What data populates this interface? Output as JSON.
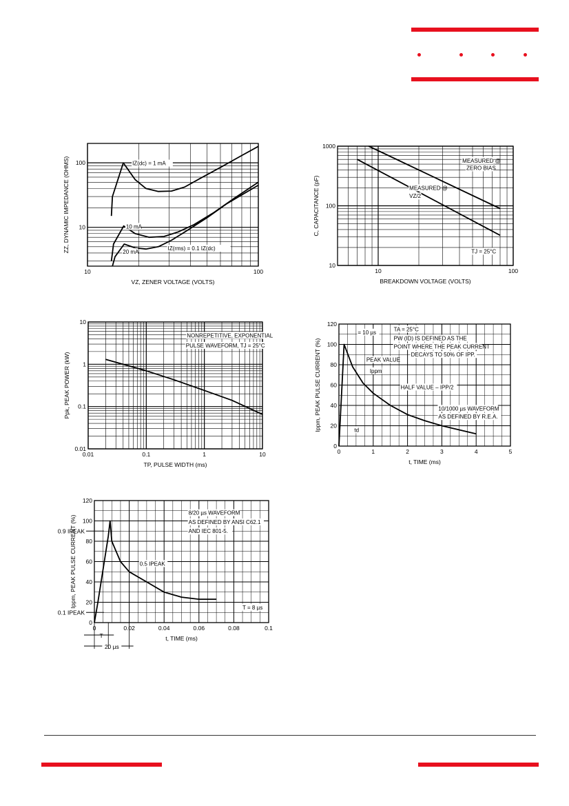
{
  "header": {
    "accent": "#e8101e"
  },
  "chart_data": [
    {
      "id": "zener",
      "type": "line",
      "xscale": "log",
      "yscale": "log",
      "xlim": [
        10,
        100
      ],
      "ylim": [
        2.5,
        200
      ],
      "xticks": [
        {
          "v": 10,
          "t": "10"
        },
        {
          "v": 100,
          "t": "100"
        }
      ],
      "yticks": [
        {
          "v": 10,
          "t": "10"
        },
        {
          "v": 100,
          "t": "100"
        }
      ],
      "xlabel": "VZ, ZENER VOLTAGE (VOLTS)",
      "ylabel": "ZZ, DYNAMIC IMPEDANCE (OHMS)",
      "series": [
        {
          "points": [
            [
              13.8,
              15
            ],
            [
              14,
              30
            ],
            [
              16.2,
              100
            ],
            [
              19,
              55
            ],
            [
              22,
              40
            ],
            [
              26,
              36
            ],
            [
              31,
              36.5
            ],
            [
              37,
              42
            ],
            [
              46,
              58
            ],
            [
              60,
              85
            ],
            [
              80,
              130
            ],
            [
              100,
              180
            ]
          ]
        },
        {
          "points": [
            [
              13.8,
              3
            ],
            [
              14.2,
              5.5
            ],
            [
              16.3,
              10.5
            ],
            [
              19,
              8
            ],
            [
              23,
              7
            ],
            [
              28,
              7.2
            ],
            [
              34,
              8.5
            ],
            [
              42,
              11
            ],
            [
              55,
              17
            ],
            [
              72,
              28
            ],
            [
              100,
              50
            ]
          ]
        },
        {
          "points": [
            [
              14,
              2.5
            ],
            [
              14.5,
              3.5
            ],
            [
              16.4,
              5.5
            ],
            [
              19,
              4.8
            ],
            [
              22,
              4.6
            ],
            [
              26,
              5
            ],
            [
              31,
              6.3
            ],
            [
              38,
              8.8
            ],
            [
              50,
              14
            ],
            [
              65,
              23
            ],
            [
              85,
              35
            ],
            [
              100,
              45
            ]
          ]
        }
      ],
      "annotations": [
        {
          "text": "IZ(dc) = 1 mA",
          "x": 18.3,
          "y": 92
        },
        {
          "text": "10 mA",
          "x": 16.8,
          "y": 9.6
        },
        {
          "text": "IZ(rms) = 0.1 IZ(dc)",
          "x": 29.5,
          "y": 4.4
        },
        {
          "text": "20 mA",
          "x": 16.1,
          "y": 3.9
        }
      ]
    },
    {
      "id": "capacitance",
      "type": "line",
      "xscale": "log",
      "yscale": "log",
      "xlim": [
        5,
        100
      ],
      "ylim": [
        10,
        1000
      ],
      "xticks": [
        {
          "v": 10,
          "t": "10"
        },
        {
          "v": 100,
          "t": "100"
        }
      ],
      "yticks": [
        {
          "v": 10,
          "t": "10"
        },
        {
          "v": 100,
          "t": "100"
        },
        {
          "v": 1000,
          "t": "1000"
        }
      ],
      "xlabel": "BREAKDOWN VOLTAGE (VOLTS)",
      "ylabel": "C, CAPACITANCE (pF)",
      "series": [
        {
          "points": [
            [
              8.5,
              1000
            ],
            [
              80,
              90
            ]
          ]
        },
        {
          "points": [
            [
              7,
              600
            ],
            [
              80,
              32
            ]
          ]
        }
      ],
      "annotations": [
        {
          "text": "MEASURED @",
          "x": 42,
          "y": 530
        },
        {
          "text": "ZERO BIAS",
          "x": 45,
          "y": 400
        },
        {
          "text": "MEASURED @",
          "x": 17,
          "y": 185
        },
        {
          "text": "VZ/2",
          "x": 17,
          "y": 135
        },
        {
          "text": "TJ = 25°C",
          "x": 49,
          "y": 16
        }
      ]
    },
    {
      "id": "peak-power",
      "type": "line",
      "xscale": "log",
      "yscale": "log",
      "xlim": [
        0.01,
        10
      ],
      "ylim": [
        0.01,
        10
      ],
      "xticks": [
        {
          "v": 0.01,
          "t": "0.01"
        },
        {
          "v": 0.1,
          "t": "0.1"
        },
        {
          "v": 1,
          "t": "1"
        },
        {
          "v": 10,
          "t": "10"
        }
      ],
      "yticks": [
        {
          "v": 0.01,
          "t": "0.01"
        },
        {
          "v": 0.1,
          "t": "0.1"
        },
        {
          "v": 1,
          "t": "1"
        },
        {
          "v": 10,
          "t": "10"
        }
      ],
      "xlabel": "TP, PULSE WIDTH (ms)",
      "ylabel": "Ppk, PEAK POWER (kW)",
      "series": [
        {
          "points": [
            [
              0.02,
              1.3
            ],
            [
              0.1,
              0.7
            ],
            [
              0.3,
              0.43
            ],
            [
              1,
              0.24
            ],
            [
              3,
              0.14
            ],
            [
              10,
              0.065
            ]
          ]
        }
      ],
      "annotations": [
        {
          "text": "NONREPETITIVE, EXPONENTIAL",
          "x": 0.5,
          "y": 4.3
        },
        {
          "text": "PULSE WAVEFORM, TJ = 25°C",
          "x": 0.48,
          "y": 2.5
        }
      ]
    },
    {
      "id": "pulse-10-1000",
      "type": "line",
      "xscale": "linear",
      "yscale": "linear",
      "xlim": [
        0,
        5
      ],
      "ylim": [
        0,
        120
      ],
      "xticks": [
        {
          "v": 0,
          "t": "0"
        },
        {
          "v": 1,
          "t": "1"
        },
        {
          "v": 2,
          "t": "2"
        },
        {
          "v": 3,
          "t": "3"
        },
        {
          "v": 4,
          "t": "4"
        },
        {
          "v": 5,
          "t": "5"
        }
      ],
      "yticks": [
        {
          "v": 0,
          "t": "0"
        },
        {
          "v": 20,
          "t": "20"
        },
        {
          "v": 40,
          "t": "40"
        },
        {
          "v": 60,
          "t": "60"
        },
        {
          "v": 80,
          "t": "80"
        },
        {
          "v": 100,
          "t": "100"
        },
        {
          "v": 120,
          "t": "120"
        }
      ],
      "xlabel": "t, TIME (ms)",
      "ylabel": "Ippm, PEAK PULSE CURRENT (%)",
      "series": [
        {
          "points": [
            [
              0,
              0
            ],
            [
              0.15,
              100
            ],
            [
              0.4,
              78
            ],
            [
              0.7,
              62
            ],
            [
              1,
              52
            ],
            [
              1.5,
              40
            ],
            [
              2,
              31
            ],
            [
              2.5,
              25
            ],
            [
              3,
              20
            ],
            [
              3.5,
              16
            ],
            [
              4,
              12
            ]
          ]
        }
      ],
      "annotations": [
        {
          "text": "= 10 µs",
          "x": 0.55,
          "y": 110
        },
        {
          "text": "TA = 25°C",
          "x": 1.6,
          "y": 113
        },
        {
          "text": "PW (ID) IS DEFINED AS THE",
          "x": 1.6,
          "y": 104
        },
        {
          "text": "POINT WHERE THE PEAK CURRENT",
          "x": 1.6,
          "y": 96
        },
        {
          "text": "DECAYS TO 50% OF IPP.",
          "x": 2.1,
          "y": 88
        },
        {
          "text": "PEAK VALUE",
          "x": 0.8,
          "y": 83
        },
        {
          "text": "Ippm",
          "x": 0.9,
          "y": 72
        },
        {
          "text": "HALF VALUE – IPP/2",
          "x": 1.8,
          "y": 56
        },
        {
          "text": "10/1000 µs WAVEFORM",
          "x": 2.9,
          "y": 35
        },
        {
          "text": "AS DEFINED BY R.E.A.",
          "x": 2.9,
          "y": 27
        },
        {
          "text": "td",
          "x": 0.45,
          "y": 14
        }
      ]
    },
    {
      "id": "pulse-8-20",
      "type": "line",
      "xscale": "linear",
      "yscale": "linear",
      "xlim": [
        0,
        0.1
      ],
      "ylim": [
        0,
        120
      ],
      "xticks": [
        {
          "v": 0,
          "t": "0"
        },
        {
          "v": 0.02,
          "t": "0.02"
        },
        {
          "v": 0.04,
          "t": "0.04"
        },
        {
          "v": 0.06,
          "t": "0.06"
        },
        {
          "v": 0.08,
          "t": "0.08"
        },
        {
          "v": 0.1,
          "t": "0.1"
        }
      ],
      "yticks": [
        {
          "v": 0,
          "t": "0"
        },
        {
          "v": 20,
          "t": "20"
        },
        {
          "v": 40,
          "t": "40"
        },
        {
          "v": 60,
          "t": "60"
        },
        {
          "v": 80,
          "t": "80"
        },
        {
          "v": 100,
          "t": "100"
        },
        {
          "v": 120,
          "t": "120"
        }
      ],
      "xlabel": "t, TIME (ms)",
      "ylabel": "Ippm, PEAK PULSE CURRENT (%)",
      "series": [
        {
          "points": [
            [
              0,
              0
            ],
            [
              0.002,
              20
            ],
            [
              0.008,
              85
            ],
            [
              0.009,
              100
            ],
            [
              0.01,
              80
            ],
            [
              0.015,
              60
            ],
            [
              0.02,
              50
            ],
            [
              0.03,
              40
            ],
            [
              0.04,
              30
            ],
            [
              0.05,
              25
            ],
            [
              0.06,
              23
            ],
            [
              0.07,
              23
            ]
          ]
        }
      ],
      "annotations": [
        {
          "text": "8/20 µs WAVEFORM",
          "x": 0.054,
          "y": 106
        },
        {
          "text": "AS DEFINED BY ANSI C62.1",
          "x": 0.054,
          "y": 97
        },
        {
          "text": "AND IEC 801-5.",
          "x": 0.054,
          "y": 88
        },
        {
          "text": "0.5 IPEAK",
          "x": 0.026,
          "y": 56
        },
        {
          "text": "T = 8 µs",
          "x": 0.085,
          "y": 13
        }
      ],
      "side_labels": [
        {
          "text": "0.9 IPEAK",
          "y": 90
        },
        {
          "text": "0.1 IPEAK",
          "y": 10
        }
      ],
      "below_labels": [
        {
          "text": "T"
        },
        {
          "text": "20 µs"
        }
      ]
    }
  ]
}
